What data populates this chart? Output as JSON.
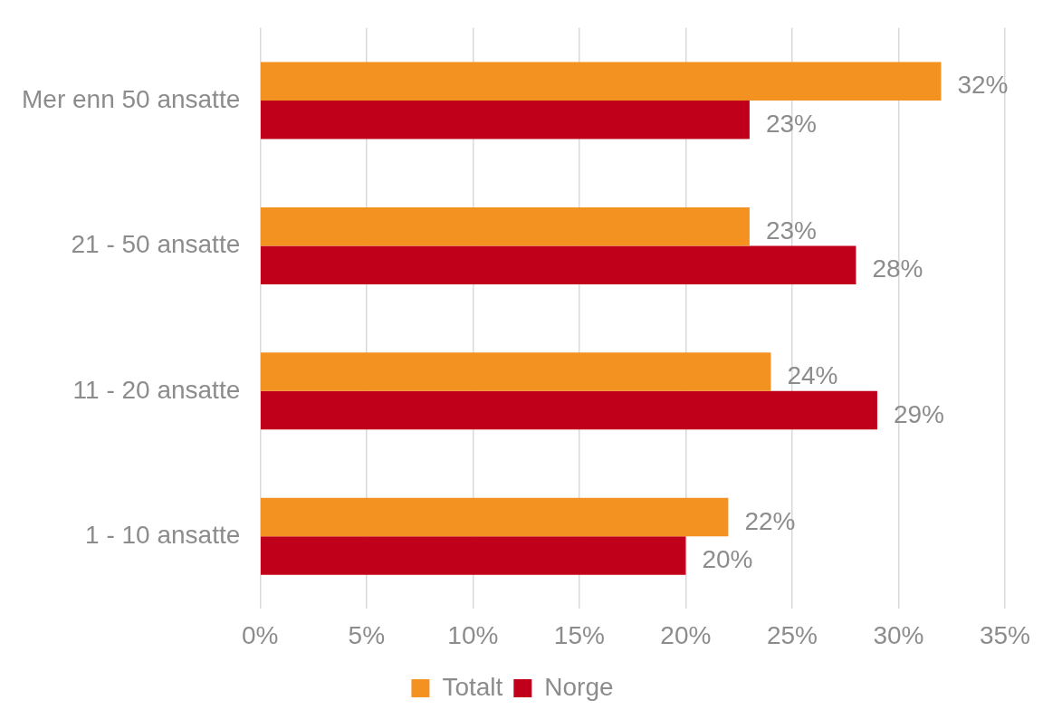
{
  "chart_data": {
    "type": "bar",
    "orientation": "horizontal",
    "categories": [
      "Mer enn 50 ansatte",
      "21 - 50 ansatte",
      "11 - 20 ansatte",
      "1 - 10 ansatte"
    ],
    "series": [
      {
        "name": "Totalt",
        "color": "#f39121",
        "values": [
          32,
          23,
          24,
          22
        ],
        "value_labels": [
          "32%",
          "23%",
          "24%",
          "22%"
        ]
      },
      {
        "name": "Norge",
        "color": "#c0001a",
        "values": [
          23,
          28,
          29,
          20
        ],
        "value_labels": [
          "23%",
          "28%",
          "29%",
          "20%"
        ]
      }
    ],
    "xlim": [
      0,
      35
    ],
    "xticks": [
      {
        "value": 0,
        "label": "0%"
      },
      {
        "value": 5,
        "label": "5%"
      },
      {
        "value": 10,
        "label": "10%"
      },
      {
        "value": 15,
        "label": "15%"
      },
      {
        "value": 20,
        "label": "20%"
      },
      {
        "value": 25,
        "label": "25%"
      },
      {
        "value": 30,
        "label": "30%"
      },
      {
        "value": 35,
        "label": "35%"
      }
    ],
    "grid": "x",
    "legend": "bottom"
  }
}
